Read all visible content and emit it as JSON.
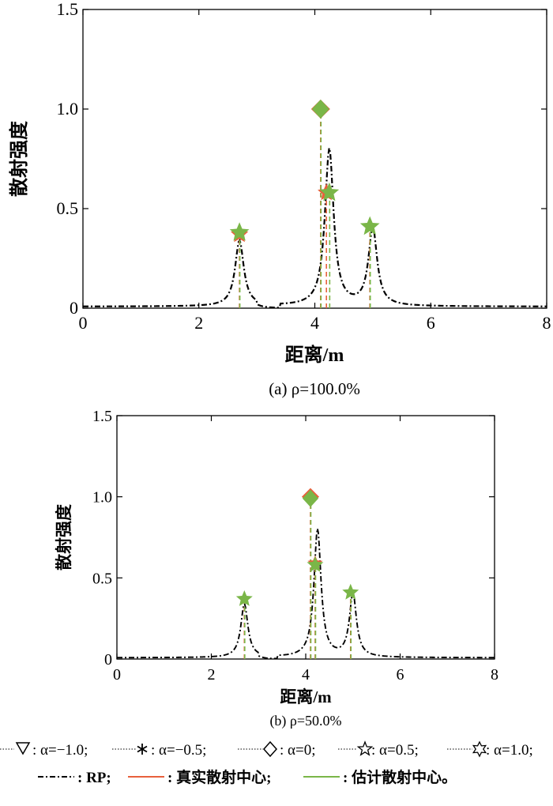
{
  "chart_data": [
    {
      "type": "line",
      "caption": "(a) ρ=100.0%",
      "xlabel": "距离/m",
      "ylabel": "散射强度",
      "xlim": [
        0,
        8
      ],
      "ylim": [
        0,
        1.5
      ],
      "xticks": [
        "0",
        "2",
        "4",
        "6",
        "8"
      ],
      "yticks": [
        "0",
        "0.5",
        "1.0",
        "1.5"
      ],
      "grid": false,
      "series": [
        {
          "name": "RP",
          "style": "dash-dot",
          "color": "#000000",
          "peaks": [
            {
              "x": 2.7,
              "y": 0.33
            },
            {
              "x": 4.25,
              "y": 0.79
            },
            {
              "x": 5.0,
              "y": 0.39
            }
          ]
        },
        {
          "name": "真实散射中心",
          "color": "#e8603c",
          "points": [
            {
              "x": 2.7,
              "y": 0.37
            },
            {
              "x": 4.1,
              "y": 1.0
            },
            {
              "x": 4.2,
              "y": 0.58
            },
            {
              "x": 4.95,
              "y": 0.41
            }
          ]
        },
        {
          "name": "估计散射中心",
          "color": "#7ab648",
          "points": [
            {
              "x": 2.7,
              "y": 0.38,
              "marker": "star"
            },
            {
              "x": 4.1,
              "y": 1.0,
              "marker": "diamond"
            },
            {
              "x": 4.25,
              "y": 0.58,
              "marker": "star"
            },
            {
              "x": 4.95,
              "y": 0.41,
              "marker": "star"
            }
          ]
        }
      ]
    },
    {
      "type": "line",
      "caption": "(b) ρ=50.0%",
      "xlabel": "距离/m",
      "ylabel": "散射强度",
      "xlim": [
        0,
        8
      ],
      "ylim": [
        0,
        1.5
      ],
      "xticks": [
        "0",
        "2",
        "4",
        "6",
        "8"
      ],
      "yticks": [
        "0",
        "0.5",
        "1.0",
        "1.5"
      ],
      "grid": false,
      "series": [
        {
          "name": "RP",
          "style": "dash-dot",
          "color": "#000000",
          "peaks": [
            {
              "x": 2.7,
              "y": 0.33
            },
            {
              "x": 4.25,
              "y": 0.79
            },
            {
              "x": 5.0,
              "y": 0.39
            }
          ]
        },
        {
          "name": "真实散射中心",
          "color": "#e8603c",
          "points": [
            {
              "x": 2.7,
              "y": 0.37
            },
            {
              "x": 4.1,
              "y": 1.0
            },
            {
              "x": 4.2,
              "y": 0.59
            },
            {
              "x": 4.95,
              "y": 0.41
            }
          ]
        },
        {
          "name": "估计散射中心",
          "color": "#7ab648",
          "points": [
            {
              "x": 2.7,
              "y": 0.37,
              "marker": "star"
            },
            {
              "x": 4.1,
              "y": 0.99,
              "marker": "diamond"
            },
            {
              "x": 4.2,
              "y": 0.58,
              "marker": "star"
            },
            {
              "x": 4.95,
              "y": 0.41,
              "marker": "star"
            }
          ]
        }
      ]
    }
  ],
  "legend": {
    "row1": [
      {
        "marker": "triangle-down-icon",
        "label": ": α=−1.0;"
      },
      {
        "marker": "asterisk-icon",
        "label": ": α=−0.5;"
      },
      {
        "marker": "diamond-icon",
        "label": ": α=0;"
      },
      {
        "marker": "star5-icon",
        "label": ": α=0.5;"
      },
      {
        "marker": "star6-icon",
        "label": ": α=1.0;"
      }
    ],
    "row2": [
      {
        "marker": "dash-dot-line",
        "label": ": RP;"
      },
      {
        "marker": "red-line",
        "label": ": 真实散射中心;"
      },
      {
        "marker": "green-line",
        "label": ": 估计散射中心。"
      }
    ]
  }
}
